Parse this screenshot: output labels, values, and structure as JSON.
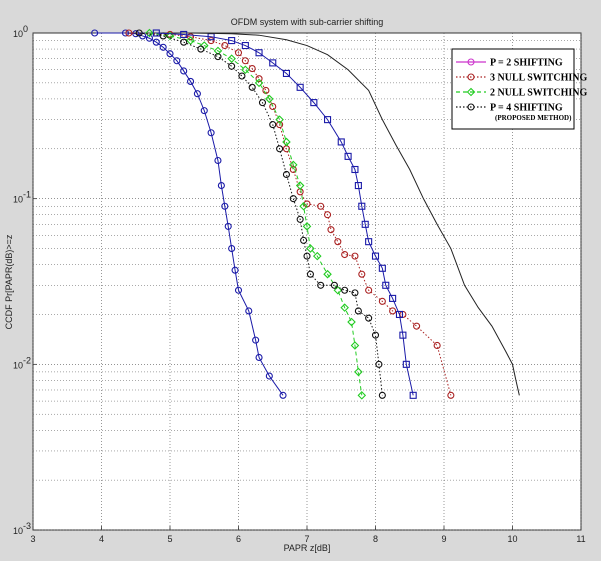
{
  "chart_data": {
    "type": "line",
    "title": "OFDM system with sub-carrier shifting",
    "xlabel": "PAPR z[dB]",
    "ylabel": "CCDF Pr[PAPR(dB)>=z",
    "xlim": [
      3,
      11
    ],
    "ylim": [
      0.001,
      1
    ],
    "y_scale": "log",
    "grid": true,
    "legend_placement": "top-right",
    "x_ticks": [
      "3",
      "4",
      "5",
      "6",
      "7",
      "8",
      "9",
      "10",
      "11"
    ],
    "y_ticks": [
      {
        "value": 1,
        "base": "10",
        "exp": "0"
      },
      {
        "value": 0.1,
        "base": "10",
        "exp": "-1"
      },
      {
        "value": 0.01,
        "base": "10",
        "exp": "-2"
      },
      {
        "value": 0.001,
        "base": "10",
        "exp": "-3"
      }
    ],
    "series": [
      {
        "name": "P = 2 SHIFTING",
        "color": "#1a1aa8",
        "marker": "circle",
        "line": "solid",
        "legend_marker_color": "#cc33cc",
        "points": [
          [
            3.9,
            1
          ],
          [
            4.35,
            1
          ],
          [
            4.5,
            0.99
          ],
          [
            4.6,
            0.96
          ],
          [
            4.7,
            0.93
          ],
          [
            4.8,
            0.88
          ],
          [
            4.9,
            0.82
          ],
          [
            5.0,
            0.75
          ],
          [
            5.1,
            0.68
          ],
          [
            5.2,
            0.59
          ],
          [
            5.3,
            0.51
          ],
          [
            5.4,
            0.43
          ],
          [
            5.5,
            0.34
          ],
          [
            5.6,
            0.25
          ],
          [
            5.7,
            0.17
          ],
          [
            5.75,
            0.12
          ],
          [
            5.8,
            0.09
          ],
          [
            5.85,
            0.068
          ],
          [
            5.9,
            0.05
          ],
          [
            5.95,
            0.037
          ],
          [
            6.0,
            0.028
          ],
          [
            6.15,
            0.021
          ],
          [
            6.25,
            0.014
          ],
          [
            6.3,
            0.011
          ],
          [
            6.45,
            0.0085
          ],
          [
            6.65,
            0.0065
          ]
        ]
      },
      {
        "name": "3 NULL SWITCHING",
        "color": "#aa2222",
        "marker": "circle",
        "line": "dotted",
        "legend_marker_color": "#aa2222",
        "points": [
          [
            4.4,
            1
          ],
          [
            5.0,
            0.98
          ],
          [
            5.3,
            0.95
          ],
          [
            5.6,
            0.9
          ],
          [
            5.8,
            0.84
          ],
          [
            6.0,
            0.76
          ],
          [
            6.1,
            0.68
          ],
          [
            6.2,
            0.61
          ],
          [
            6.3,
            0.53
          ],
          [
            6.4,
            0.45
          ],
          [
            6.5,
            0.36
          ],
          [
            6.6,
            0.28
          ],
          [
            6.7,
            0.2
          ],
          [
            6.8,
            0.15
          ],
          [
            6.9,
            0.11
          ],
          [
            7.0,
            0.093
          ],
          [
            7.2,
            0.09
          ],
          [
            7.3,
            0.08
          ],
          [
            7.35,
            0.065
          ],
          [
            7.45,
            0.055
          ],
          [
            7.55,
            0.046
          ],
          [
            7.7,
            0.045
          ],
          [
            7.8,
            0.035
          ],
          [
            7.9,
            0.028
          ],
          [
            8.1,
            0.024
          ],
          [
            8.25,
            0.021
          ],
          [
            8.4,
            0.02
          ],
          [
            8.6,
            0.017
          ],
          [
            8.9,
            0.013
          ],
          [
            9.1,
            0.0065
          ]
        ]
      },
      {
        "name": "2 NULL SWITCHING",
        "color": "#22cc22",
        "marker": "diamond",
        "line": "dashed",
        "legend_marker_color": "#22cc22",
        "points": [
          [
            4.7,
            1
          ],
          [
            5.0,
            0.96
          ],
          [
            5.3,
            0.9
          ],
          [
            5.5,
            0.84
          ],
          [
            5.7,
            0.78
          ],
          [
            5.9,
            0.7
          ],
          [
            6.1,
            0.6
          ],
          [
            6.3,
            0.5
          ],
          [
            6.45,
            0.4
          ],
          [
            6.6,
            0.3
          ],
          [
            6.7,
            0.22
          ],
          [
            6.8,
            0.16
          ],
          [
            6.9,
            0.12
          ],
          [
            6.95,
            0.09
          ],
          [
            7.0,
            0.068
          ],
          [
            7.05,
            0.05
          ],
          [
            7.15,
            0.045
          ],
          [
            7.3,
            0.035
          ],
          [
            7.45,
            0.028
          ],
          [
            7.55,
            0.022
          ],
          [
            7.65,
            0.018
          ],
          [
            7.7,
            0.013
          ],
          [
            7.75,
            0.009
          ],
          [
            7.8,
            0.0065
          ]
        ]
      },
      {
        "name": "P = 4 SHIFTING",
        "color": "#111111",
        "marker": "circle",
        "line": "dotted",
        "legend_marker_color": "#111111",
        "sublabel": "(PROPOSED METHOD)",
        "points": [
          [
            4.55,
            1
          ],
          [
            4.9,
            0.96
          ],
          [
            5.2,
            0.88
          ],
          [
            5.45,
            0.8
          ],
          [
            5.7,
            0.72
          ],
          [
            5.9,
            0.63
          ],
          [
            6.05,
            0.55
          ],
          [
            6.2,
            0.47
          ],
          [
            6.35,
            0.38
          ],
          [
            6.5,
            0.28
          ],
          [
            6.6,
            0.2
          ],
          [
            6.7,
            0.14
          ],
          [
            6.8,
            0.1
          ],
          [
            6.9,
            0.075
          ],
          [
            6.95,
            0.056
          ],
          [
            7.0,
            0.045
          ],
          [
            7.05,
            0.035
          ],
          [
            7.2,
            0.03
          ],
          [
            7.4,
            0.03
          ],
          [
            7.55,
            0.028
          ],
          [
            7.7,
            0.027
          ],
          [
            7.75,
            0.021
          ],
          [
            7.9,
            0.019
          ],
          [
            8.0,
            0.015
          ],
          [
            8.05,
            0.01
          ],
          [
            8.1,
            0.0065
          ]
        ]
      },
      {
        "name": "",
        "color": "#1a1aa8",
        "marker": "square",
        "line": "solid",
        "points": [
          [
            4.8,
            1
          ],
          [
            5.2,
            0.98
          ],
          [
            5.6,
            0.95
          ],
          [
            5.9,
            0.9
          ],
          [
            6.1,
            0.84
          ],
          [
            6.3,
            0.76
          ],
          [
            6.5,
            0.66
          ],
          [
            6.7,
            0.57
          ],
          [
            6.9,
            0.47
          ],
          [
            7.1,
            0.38
          ],
          [
            7.3,
            0.3
          ],
          [
            7.5,
            0.22
          ],
          [
            7.6,
            0.18
          ],
          [
            7.7,
            0.15
          ],
          [
            7.75,
            0.12
          ],
          [
            7.8,
            0.09
          ],
          [
            7.85,
            0.07
          ],
          [
            7.9,
            0.055
          ],
          [
            8.0,
            0.045
          ],
          [
            8.1,
            0.038
          ],
          [
            8.15,
            0.03
          ],
          [
            8.25,
            0.025
          ],
          [
            8.35,
            0.02
          ],
          [
            8.4,
            0.015
          ],
          [
            8.45,
            0.01
          ],
          [
            8.55,
            0.0065
          ]
        ]
      },
      {
        "name": "",
        "color": "#222222",
        "marker": "none",
        "line": "solid",
        "points": [
          [
            5.3,
            1
          ],
          [
            5.9,
            0.99
          ],
          [
            6.3,
            0.97
          ],
          [
            6.7,
            0.91
          ],
          [
            7.0,
            0.84
          ],
          [
            7.3,
            0.74
          ],
          [
            7.6,
            0.6
          ],
          [
            7.9,
            0.45
          ],
          [
            8.1,
            0.3
          ],
          [
            8.3,
            0.21
          ],
          [
            8.5,
            0.15
          ],
          [
            8.7,
            0.1
          ],
          [
            8.9,
            0.07
          ],
          [
            9.1,
            0.05
          ],
          [
            9.3,
            0.03
          ],
          [
            9.5,
            0.022
          ],
          [
            9.7,
            0.017
          ],
          [
            9.9,
            0.012
          ],
          [
            10.0,
            0.01
          ],
          [
            10.05,
            0.008
          ],
          [
            10.1,
            0.0065
          ]
        ]
      }
    ]
  }
}
